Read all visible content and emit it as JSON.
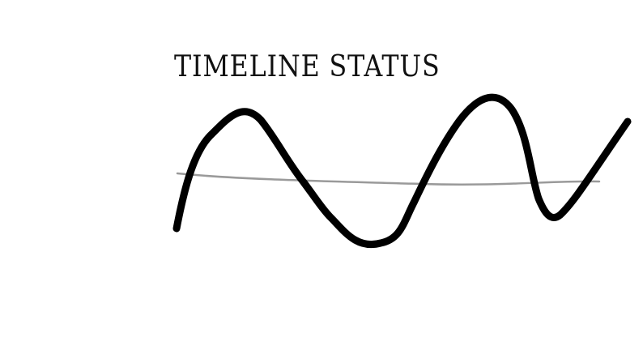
{
  "title": "TIMELINE STATUS",
  "colors": {
    "wave": "#000000",
    "baseline": "#9a9a9a",
    "background": "#ffffff"
  }
}
